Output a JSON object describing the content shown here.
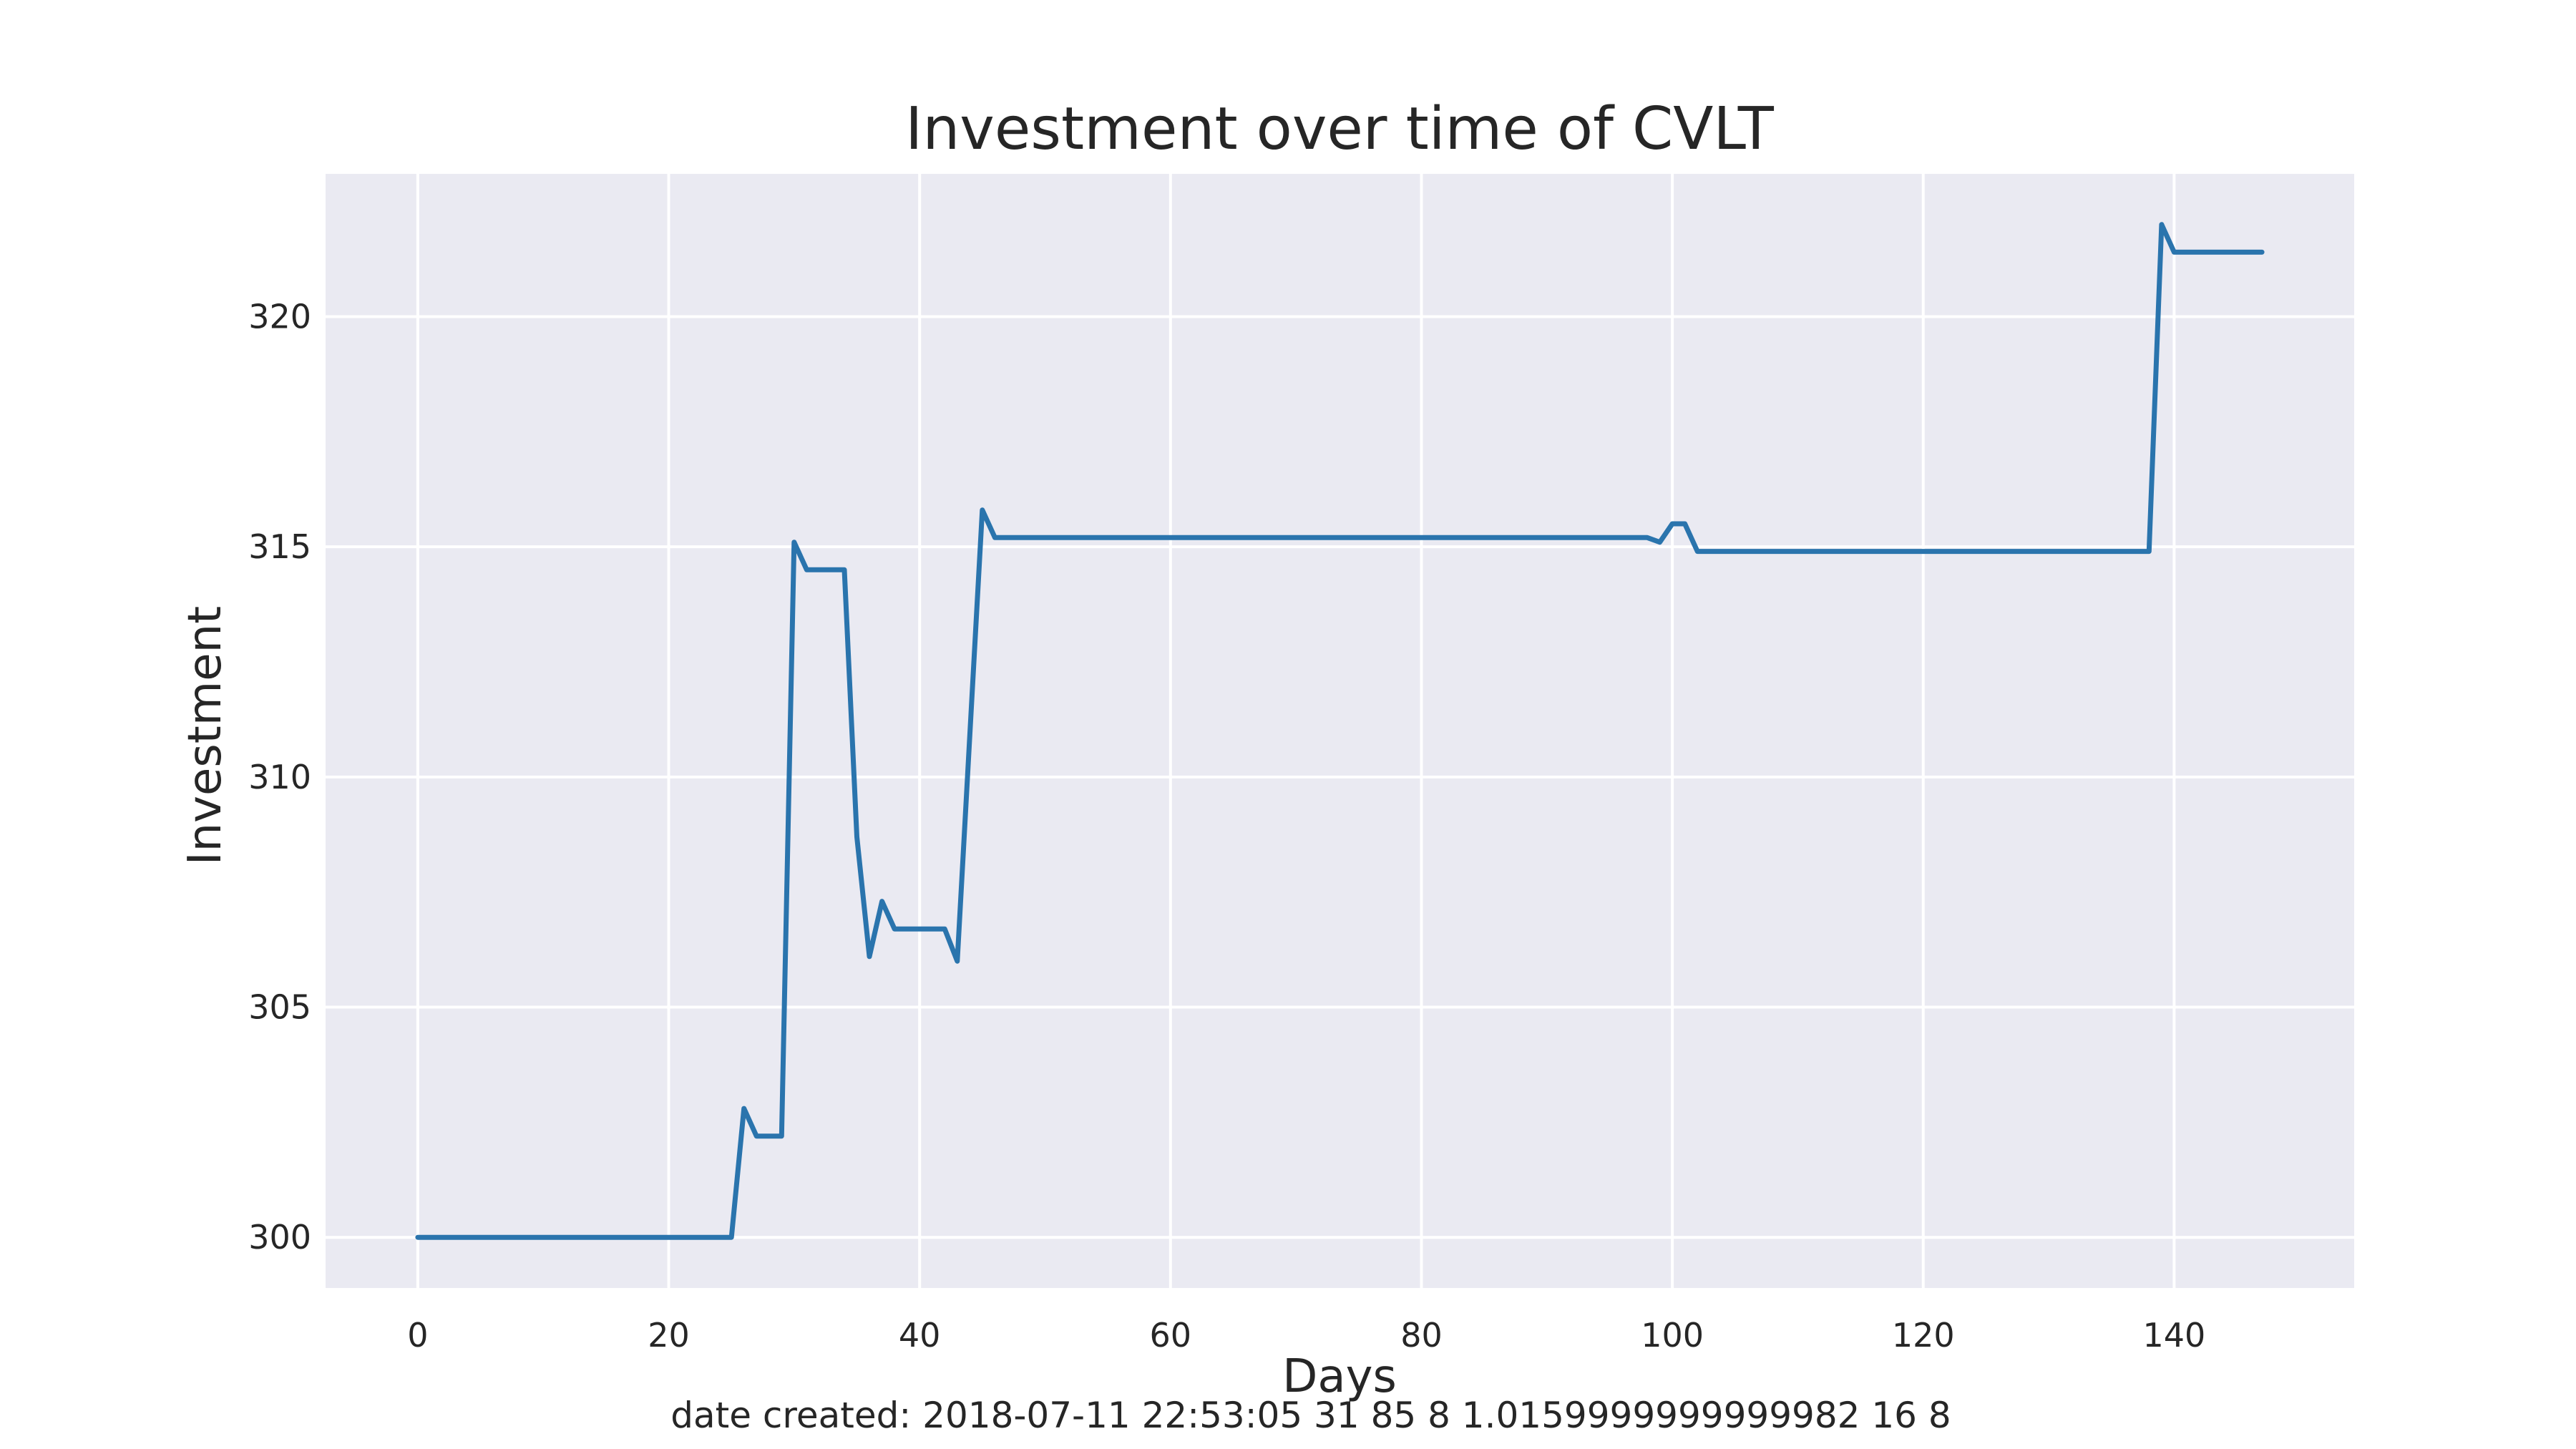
{
  "chart_data": {
    "type": "line",
    "title": "Investment over time of CVLT",
    "xlabel": "Days",
    "ylabel": "Investment",
    "xlim": [
      -7.35,
      154.35
    ],
    "ylim": [
      298.9,
      323.1
    ],
    "xticks": [
      0,
      20,
      40,
      60,
      80,
      100,
      120,
      140
    ],
    "yticks": [
      300,
      305,
      310,
      315,
      320
    ],
    "grid": true,
    "style": {
      "background": "#eaeaf2",
      "grid_color": "#ffffff",
      "line_color": "#2a74ad"
    },
    "series": [
      {
        "points": [
          [
            0,
            300.0
          ],
          [
            25,
            300.0
          ],
          [
            26,
            302.8
          ],
          [
            27,
            302.2
          ],
          [
            29,
            302.2
          ],
          [
            30,
            315.1
          ],
          [
            31,
            314.5
          ],
          [
            34,
            314.5
          ],
          [
            35,
            308.7
          ],
          [
            36,
            306.1
          ],
          [
            37,
            307.3
          ],
          [
            38,
            306.7
          ],
          [
            42,
            306.7
          ],
          [
            43,
            306.0
          ],
          [
            45,
            315.8
          ],
          [
            46,
            315.2
          ],
          [
            98,
            315.2
          ],
          [
            99,
            315.1
          ],
          [
            100,
            315.5
          ],
          [
            101,
            315.5
          ],
          [
            102,
            314.9
          ],
          [
            138,
            314.9
          ],
          [
            139,
            322.0
          ],
          [
            140,
            321.4
          ],
          [
            147,
            321.4
          ]
        ]
      }
    ]
  },
  "footer": {
    "caption": "date created: 2018-07-11 22:53:05 31 85 8 1.0159999999999982 16 8"
  }
}
